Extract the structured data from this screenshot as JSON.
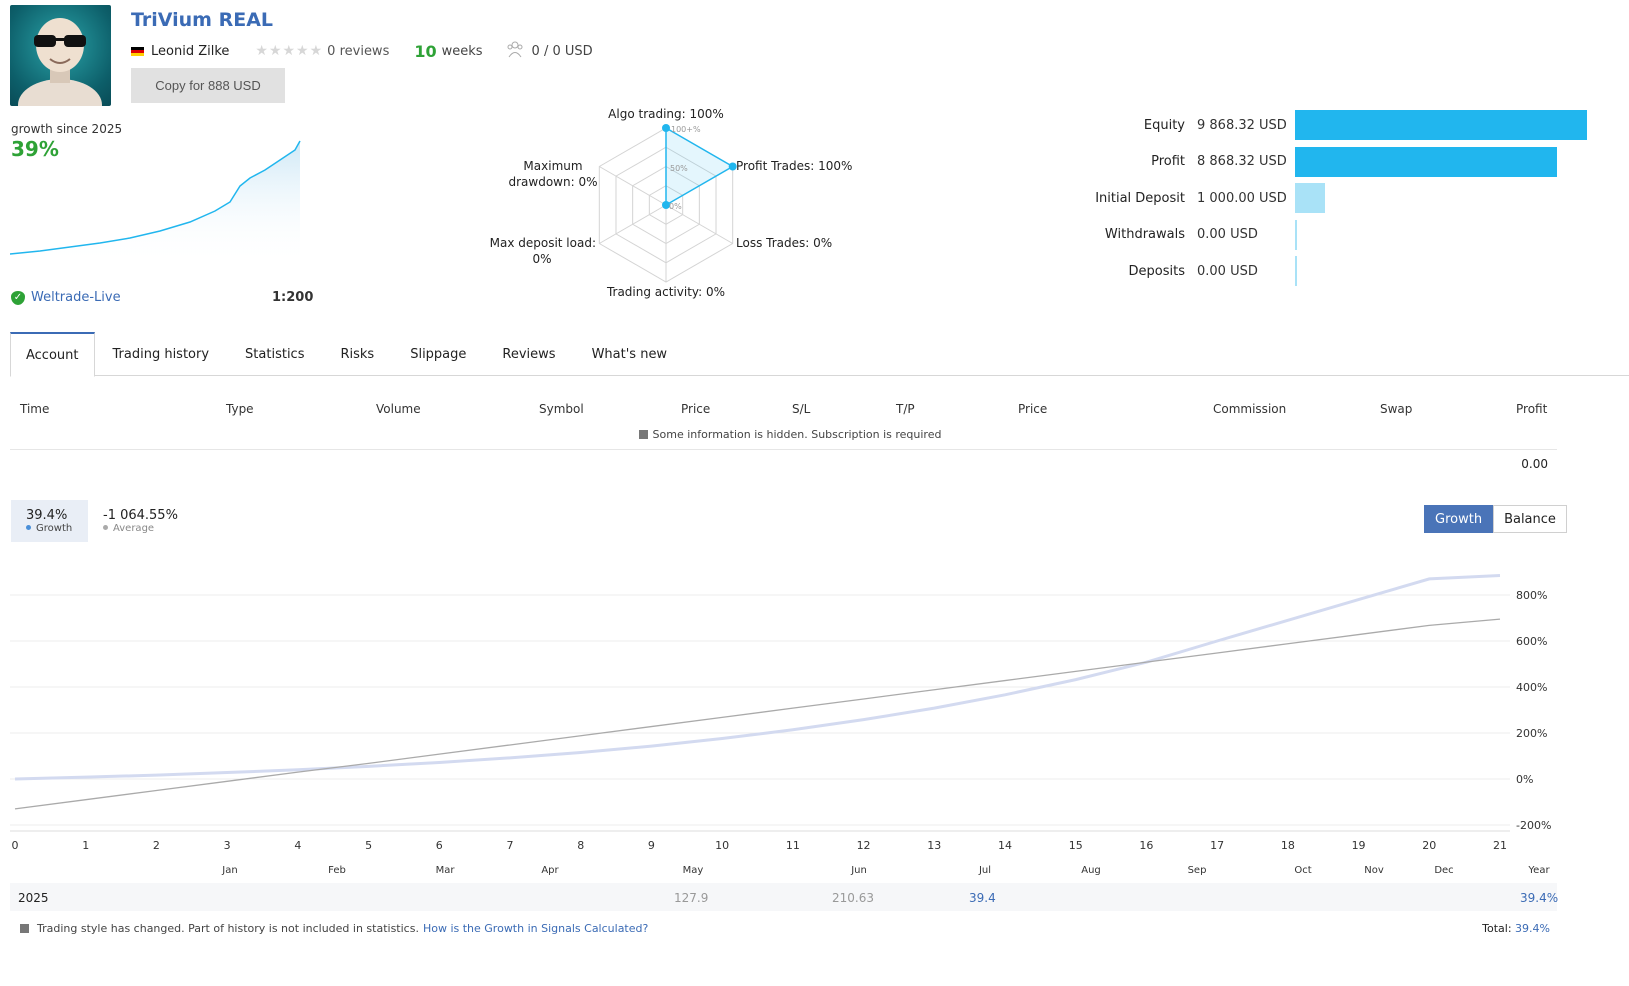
{
  "signal": {
    "title": "TriVium REAL",
    "author": "Leonid Zilke",
    "reviews": "0 reviews",
    "weeks_num": "10",
    "weeks_label": "weeks",
    "subscribers": "0 / 0 USD",
    "copy_button": "Copy for 888 USD",
    "growth_since": "growth since 2025",
    "growth_pct": "39%",
    "broker": "Weltrade-Live",
    "leverage": "1:200"
  },
  "radar": {
    "algo": "Algo trading: 100%",
    "profit": "Profit Trades: 100%",
    "loss": "Loss Trades: 0%",
    "activity": "Trading activity: 0%",
    "deposit_load_1": "Max deposit load:",
    "deposit_load_2": "0%",
    "drawdown_1": "Maximum",
    "drawdown_2": "drawdown: 0%",
    "ring_100": "100+%",
    "ring_50": "50%",
    "ring_0": "0%",
    "values": [
      100,
      100,
      0,
      0,
      0,
      0
    ]
  },
  "stats": [
    {
      "label": "Equity",
      "value": "9 868.32 USD",
      "amount": 9868.32,
      "color": "#21b6ee"
    },
    {
      "label": "Profit",
      "value": "8 868.32 USD",
      "amount": 8868.32,
      "color": "#21b6ee"
    },
    {
      "label": "Initial Deposit",
      "value": "1 000.00 USD",
      "amount": 1000.0,
      "color": "#a9e2f7"
    },
    {
      "label": "Withdrawals",
      "value": "0.00 USD",
      "amount": 0,
      "color": "#a9e2f7"
    },
    {
      "label": "Deposits",
      "value": "0.00 USD",
      "amount": 0,
      "color": "#a9e2f7"
    }
  ],
  "tabs": [
    "Account",
    "Trading history",
    "Statistics",
    "Risks",
    "Slippage",
    "Reviews",
    "What's new"
  ],
  "table": {
    "columns": [
      "Time",
      "Type",
      "Volume",
      "Symbol",
      "Price",
      "S/L",
      "T/P",
      "Price",
      "Commission",
      "Swap",
      "Profit"
    ],
    "hidden_msg": "Some information is hidden. Subscription is required",
    "total": "0.00"
  },
  "legend": {
    "growth_val": "39.4%",
    "growth_label": "Growth",
    "avg_val": "-1 064.55%",
    "avg_label": "Average"
  },
  "toggle": {
    "growth": "Growth",
    "balance": "Balance"
  },
  "chart_data": {
    "type": "line",
    "x": [
      0,
      1,
      2,
      3,
      4,
      5,
      6,
      7,
      8,
      9,
      10,
      11,
      12,
      13,
      14,
      15,
      16,
      17,
      18,
      19,
      20,
      21
    ],
    "x_ticks": [
      "0",
      "1",
      "2",
      "3",
      "4",
      "5",
      "6",
      "7",
      "8",
      "9",
      "10",
      "11",
      "12",
      "13",
      "14",
      "15",
      "16",
      "17",
      "18",
      "19",
      "20",
      "21"
    ],
    "months": [
      "Jan",
      "Feb",
      "Mar",
      "Apr",
      "May",
      "Jun",
      "Jul",
      "Aug",
      "Sep",
      "Oct",
      "Nov",
      "Dec",
      "Year"
    ],
    "y_ticks": [
      "800%",
      "600%",
      "400%",
      "200%",
      "0%",
      "-200%"
    ],
    "ylim": [
      -200,
      800
    ],
    "series": [
      {
        "color": "#d3daf0",
        "values": [
          0,
          8,
          17,
          28,
          40,
          55,
          72,
          92,
          115,
          143,
          176,
          214,
          258,
          308,
          366,
          432,
          508,
          600,
          690,
          780,
          870,
          885
        ]
      },
      {
        "color": "#aaaaaa",
        "values": [
          -130,
          -90,
          -50,
          -10,
          30,
          68,
          108,
          148,
          188,
          228,
          268,
          308,
          348,
          388,
          428,
          468,
          508,
          548,
          588,
          628,
          668,
          695
        ]
      }
    ]
  },
  "year_row": {
    "year": "2025",
    "may": "127.9",
    "jun": "210.63",
    "jul": "39.4",
    "total": "39.4%"
  },
  "footer": {
    "text": "Trading style has changed. Part of history is not included in statistics.",
    "link": "How is the Growth in Signals Calculated?",
    "total_label": "Total:",
    "total_value": "39.4%"
  }
}
